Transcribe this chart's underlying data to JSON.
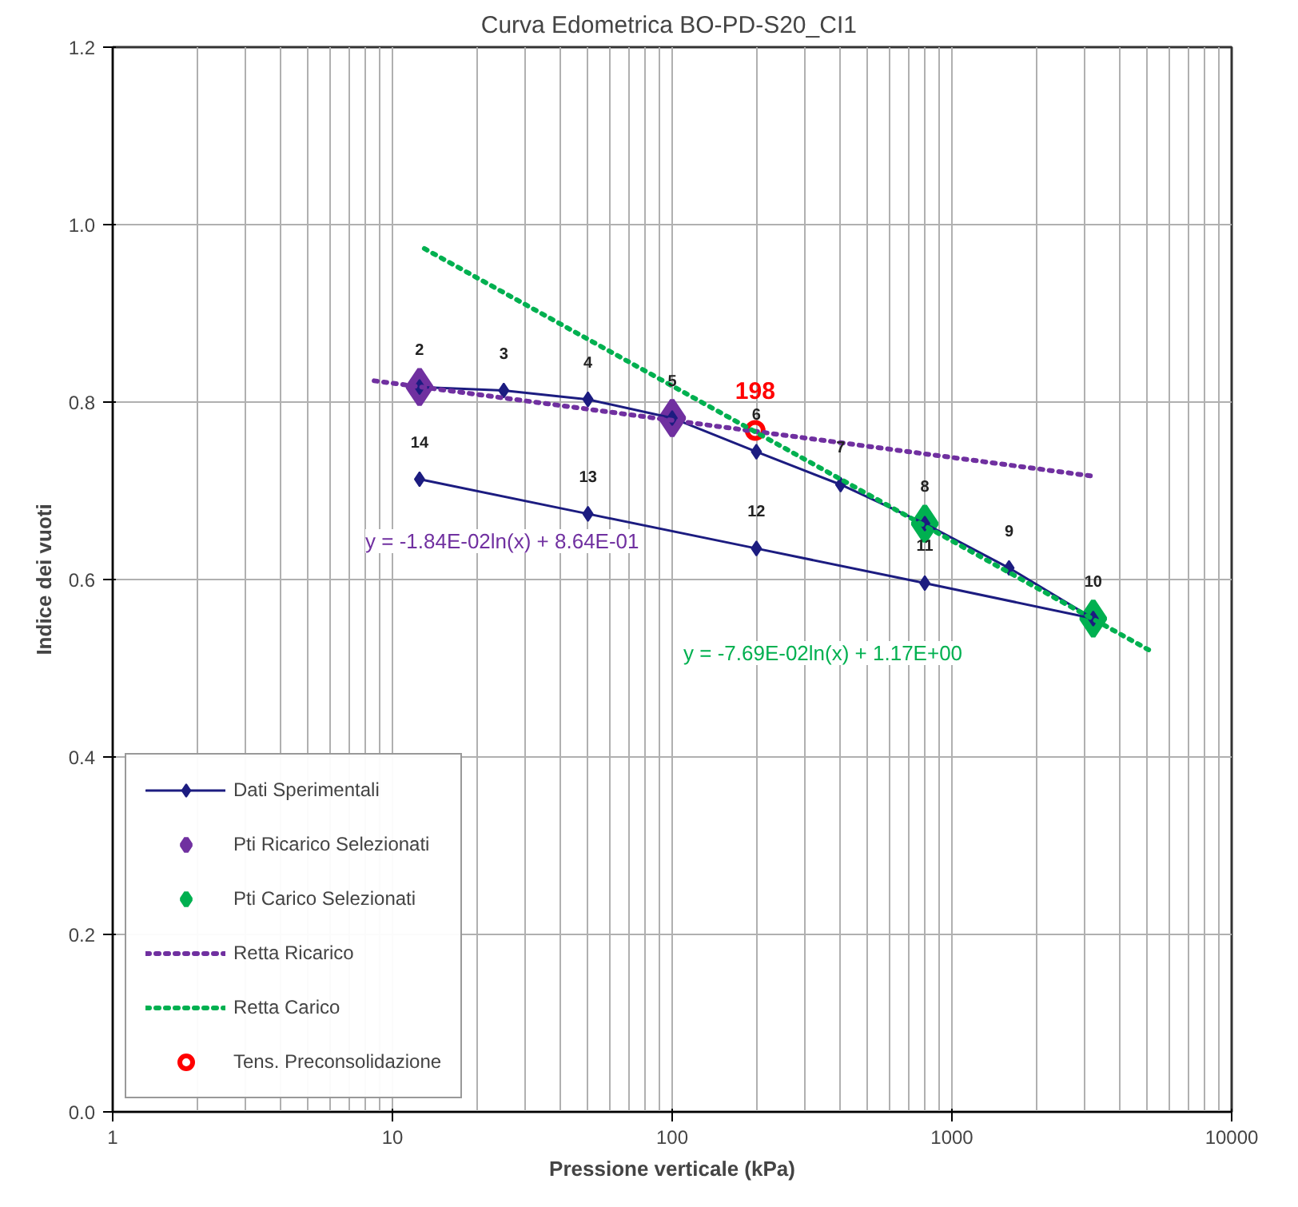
{
  "chart_data": {
    "type": "line",
    "title": "Curva  Edometrica BO-PD-S20_CI1",
    "xlabel": "Pressione verticale (kPa)",
    "ylabel": "Indice dei vuoti",
    "log": "x",
    "grid": true,
    "legend": "bottom left",
    "xlim": [
      1,
      10000
    ],
    "xticks": [
      1,
      10,
      100,
      1000,
      10000
    ],
    "ylim": [
      0,
      1.2
    ],
    "yticks": [
      {
        "value": 0,
        "label": "0.0"
      },
      0.2,
      0.4,
      0.6,
      0.8,
      {
        "value": 1,
        "label": "1.0"
      },
      1.2
    ],
    "series": [
      {
        "name": "Dati Sperimentali",
        "marker": "diamond",
        "line_style": "solid",
        "color": "#1c1c80",
        "x": [
          12.5,
          25,
          50,
          100,
          200,
          400,
          800,
          1600,
          3200,
          800,
          200,
          50,
          12.5
        ],
        "values": [
          0.817,
          0.813,
          0.803,
          0.782,
          0.744,
          0.707,
          0.663,
          0.613,
          0.556,
          0.596,
          0.635,
          0.674,
          0.713
        ]
      },
      {
        "name": "Pti Ricarico Selezionati",
        "type": "scatter",
        "marker": "diamond",
        "color": "#7030a0",
        "x": [
          12.5,
          100
        ],
        "values": [
          0.817,
          0.782
        ]
      },
      {
        "name": "Pti Carico Selezionati",
        "type": "scatter",
        "marker": "diamond",
        "color": "#00b050",
        "x": [
          800,
          3200
        ],
        "values": [
          0.663,
          0.556
        ]
      },
      {
        "name": "Retta Ricarico",
        "marker": "none",
        "line_style": "dotted",
        "color": "#7030a0",
        "x": [
          8.6,
          3280
        ],
        "values": [
          0.824,
          0.716
        ]
      },
      {
        "name": "Retta Carico",
        "marker": "none",
        "line_style": "dotted",
        "color": "#00b050",
        "x": [
          13,
          5100
        ],
        "values": [
          0.973,
          0.52
        ]
      },
      {
        "name": "Tens. Preconsolidazione",
        "type": "scatter",
        "marker": "circle",
        "color": "#ff0000",
        "x": [
          198
        ],
        "values": [
          0.768
        ]
      }
    ],
    "annotations": [
      {
        "text": "2",
        "x": 12.5,
        "y": 0.817
      },
      {
        "text": "3",
        "x": 25,
        "y": 0.813
      },
      {
        "text": "4",
        "x": 50,
        "y": 0.803
      },
      {
        "text": "5",
        "x": 100,
        "y": 0.782
      },
      {
        "text": "6",
        "x": 200,
        "y": 0.744
      },
      {
        "text": "7",
        "x": 400,
        "y": 0.707
      },
      {
        "text": "8",
        "x": 800,
        "y": 0.663
      },
      {
        "text": "9",
        "x": 1600,
        "y": 0.613
      },
      {
        "text": "10",
        "x": 3200,
        "y": 0.556
      },
      {
        "text": "11",
        "x": 800,
        "y": 0.596
      },
      {
        "text": "12",
        "x": 200,
        "y": 0.635
      },
      {
        "text": "13",
        "x": 50,
        "y": 0.674
      },
      {
        "text": "14",
        "x": 12.5,
        "y": 0.713
      },
      {
        "text": "198",
        "x": 198,
        "y": 0.768
      },
      "y = -1.84E-02ln(x) + 8.64E-01",
      "y = -7.69E-02ln(x) + 1.17E+00"
    ]
  }
}
